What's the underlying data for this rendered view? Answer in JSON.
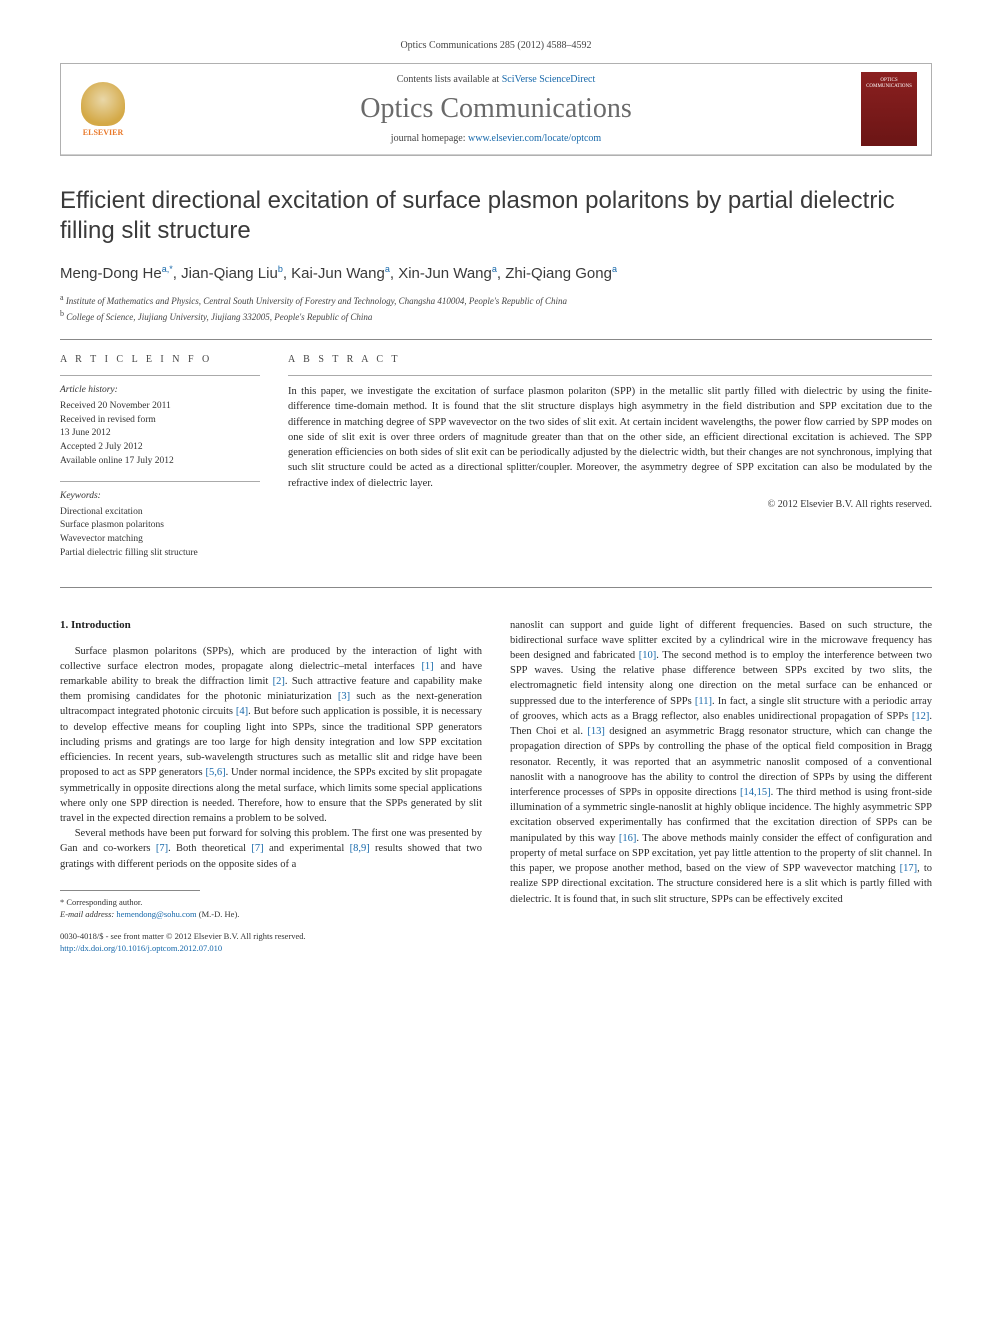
{
  "citation": "Optics Communications 285 (2012) 4588–4592",
  "header": {
    "contents_prefix": "Contents lists available at ",
    "contents_link": "SciVerse ScienceDirect",
    "journal": "Optics Communications",
    "homepage_prefix": "journal homepage: ",
    "homepage_link": "www.elsevier.com/locate/optcom",
    "publisher": "ELSEVIER",
    "cover_label": "OPTICS COMMUNICATIONS"
  },
  "title": "Efficient directional excitation of surface plasmon polaritons by partial dielectric filling slit structure",
  "authors_html": "Meng-Dong He",
  "authors": [
    {
      "name": "Meng-Dong He",
      "sup": "a,*"
    },
    {
      "name": "Jian-Qiang Liu",
      "sup": "b"
    },
    {
      "name": "Kai-Jun Wang",
      "sup": "a"
    },
    {
      "name": "Xin-Jun Wang",
      "sup": "a"
    },
    {
      "name": "Zhi-Qiang Gong",
      "sup": "a"
    }
  ],
  "affiliations": [
    {
      "sup": "a",
      "text": "Institute of Mathematics and Physics, Central South University of Forestry and Technology, Changsha 410004, People's Republic of China"
    },
    {
      "sup": "b",
      "text": "College of Science, Jiujiang University, Jiujiang 332005, People's Republic of China"
    }
  ],
  "info": {
    "heading": "A R T I C L E   I N F O",
    "history_head": "Article history:",
    "history": [
      "Received 20 November 2011",
      "Received in revised form",
      "13 June 2012",
      "Accepted 2 July 2012",
      "Available online 17 July 2012"
    ],
    "keywords_head": "Keywords:",
    "keywords": [
      "Directional excitation",
      "Surface plasmon polaritons",
      "Wavevector matching",
      "Partial dielectric filling slit structure"
    ]
  },
  "abstract": {
    "heading": "A B S T R A C T",
    "text": "In this paper, we investigate the excitation of surface plasmon polariton (SPP) in the metallic slit partly filled with dielectric by using the finite-difference time-domain method. It is found that the slit structure displays high asymmetry in the field distribution and SPP excitation due to the difference in matching degree of SPP wavevector on the two sides of slit exit. At certain incident wavelengths, the power flow carried by SPP modes on one side of slit exit is over three orders of magnitude greater than that on the other side, an efficient directional excitation is achieved. The SPP generation efficiencies on both sides of slit exit can be periodically adjusted by the dielectric width, but their changes are not synchronous, implying that such slit structure could be acted as a directional splitter/coupler. Moreover, the asymmetry degree of SPP excitation can also be modulated by the refractive index of dielectric layer.",
    "copyright": "© 2012 Elsevier B.V. All rights reserved."
  },
  "section1": {
    "heading": "1. Introduction",
    "p1a": "Surface plasmon polaritons (SPPs), which are produced by the interaction of light with collective surface electron modes, propagate along dielectric–metal interfaces ",
    "r1": "[1]",
    "p1b": " and have remarkable ability to break the diffraction limit ",
    "r2": "[2]",
    "p1c": ". Such attractive feature and capability make them promising candidates for the photonic miniaturization ",
    "r3": "[3]",
    "p1d": " such as the next-generation ultracompact integrated photonic circuits ",
    "r4": "[4]",
    "p1e": ". But before such application is possible, it is necessary to develop effective means for coupling light into SPPs, since the traditional SPP generators including prisms and gratings are too large for high density integration and low SPP excitation efficiencies. In recent years, sub-wavelength structures such as metallic slit and ridge have been proposed to act as SPP generators ",
    "r56": "[5,6]",
    "p1f": ". Under normal incidence, the SPPs excited by slit propagate symmetrically in opposite directions along the metal surface, which limits some special applications where only one SPP direction is needed. Therefore, how to ensure that the SPPs generated by slit travel in the expected direction remains a problem to be solved.",
    "p2a": "Several methods have been put forward for solving this problem. The first one was presented by Gan and co-workers ",
    "r7": "[7]",
    "p2b": ". Both theoretical ",
    "r7b": "[7]",
    "p2c": " and experimental ",
    "r89": "[8,9]",
    "p2d": " results showed that two gratings with different periods on the opposite sides of a",
    "col2a": "nanoslit can support and guide light of different frequencies. Based on such structure, the bidirectional surface wave splitter excited by a cylindrical wire in the microwave frequency has been designed and fabricated ",
    "r10": "[10]",
    "col2b": ". The second method is to employ the interference between two SPP waves. Using the relative phase difference between SPPs excited by two slits, the electromagnetic field intensity along one direction on the metal surface can be enhanced or suppressed due to the interference of SPPs ",
    "r11": "[11]",
    "col2c": ". In fact, a single slit structure with a periodic array of grooves, which acts as a Bragg reflector, also enables unidirectional propagation of SPPs ",
    "r12": "[12]",
    "col2d": ". Then Choi et al. ",
    "r13": "[13]",
    "col2e": " designed an asymmetric Bragg resonator structure, which can change the propagation direction of SPPs by controlling the phase of the optical field composition in Bragg resonator. Recently, it was reported that an asymmetric nanoslit composed of a conventional nanoslit with a nanogroove has the ability to control the direction of SPPs by using the different interference processes of SPPs in opposite directions ",
    "r1415": "[14,15]",
    "col2f": ". The third method is using front-side illumination of a symmetric single-nanoslit at highly oblique incidence. The highly asymmetric SPP excitation observed experimentally has confirmed that the excitation direction of SPPs can be manipulated by this way ",
    "r16": "[16]",
    "col2g": ". The above methods mainly consider the effect of configuration and property of metal surface on SPP excitation, yet pay little attention to the property of slit channel. In this paper, we propose another method, based on the view of SPP wavevector matching ",
    "r17": "[17]",
    "col2h": ", to realize SPP directional excitation. The structure considered here is a slit which is partly filled with dielectric. It is found that, in such slit structure, SPPs can be effectively excited"
  },
  "footnote": {
    "corr": "* Corresponding author.",
    "email_label": "E-mail address: ",
    "email": "hemendong@sohu.com",
    "email_suffix": " (M.-D. He)."
  },
  "doi": {
    "line1": "0030-4018/$ - see front matter © 2012 Elsevier B.V. All rights reserved.",
    "line2_prefix": "http://dx.doi.org/",
    "line2_link": "10.1016/j.optcom.2012.07.010"
  },
  "colors": {
    "link": "#1768aa",
    "text": "#2a2a2a",
    "rule": "#888888",
    "elsevier_orange": "#e9792b",
    "cover_red": "#8b2020"
  }
}
